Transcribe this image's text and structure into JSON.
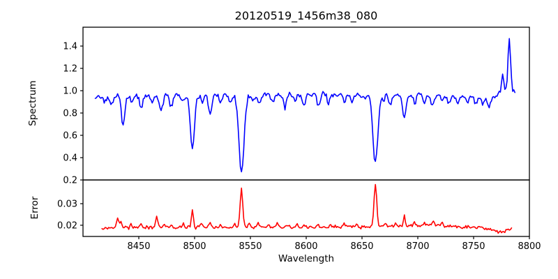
{
  "figure": {
    "title": "20120519_1456m38_080",
    "background": "#ffffff",
    "frame_color": "#000000",
    "text_color": "#000000"
  },
  "chart_data": [
    {
      "id": "spectrum",
      "type": "line",
      "ylabel": "Spectrum",
      "color": "#0000ff",
      "grid": false,
      "legend": "none",
      "xlim": [
        8400,
        8800
      ],
      "ylim": [
        0.2,
        1.569
      ],
      "yticks": [
        {
          "v": 0.2,
          "label": "0.2"
        },
        {
          "v": 0.4,
          "label": "0.4"
        },
        {
          "v": 0.6,
          "label": "0.6"
        },
        {
          "v": 0.8,
          "label": "0.8"
        },
        {
          "v": 1.0,
          "label": "1.0"
        },
        {
          "v": 1.2,
          "label": "1.2"
        },
        {
          "v": 1.4,
          "label": "1.4"
        }
      ],
      "xticks": [
        {
          "v": 8450,
          "label": "8450"
        },
        {
          "v": 8500,
          "label": "8500"
        },
        {
          "v": 8550,
          "label": "8550"
        },
        {
          "v": 8600,
          "label": "8600"
        },
        {
          "v": 8650,
          "label": "8650"
        },
        {
          "v": 8700,
          "label": "8700"
        },
        {
          "v": 8750,
          "label": "8750"
        },
        {
          "v": 8800,
          "label": "8800"
        }
      ],
      "show_xtick_marks": false,
      "show_xtick_labels": false,
      "x_start": 8411,
      "x_end": 8787,
      "x_step": 1,
      "continuum": [
        [
          8411,
          0.94
        ],
        [
          8425,
          0.955
        ],
        [
          8460,
          0.96
        ],
        [
          8530,
          0.96
        ],
        [
          8600,
          0.965
        ],
        [
          8660,
          0.962
        ],
        [
          8700,
          0.96
        ],
        [
          8740,
          0.955
        ],
        [
          8757,
          0.945
        ],
        [
          8762,
          0.93
        ],
        [
          8768,
          0.955
        ],
        [
          8773,
          0.98
        ],
        [
          8779,
          1.0
        ],
        [
          8787,
          1.0
        ]
      ],
      "noise": {
        "amplitude": 0.05,
        "seed": 20120519
      },
      "features": [
        [
          8420,
          -0.05,
          1.2
        ],
        [
          8426,
          -0.08,
          1.5
        ],
        [
          8436,
          -0.27,
          1.5
        ],
        [
          8444,
          -0.06,
          1.2
        ],
        [
          8452,
          -0.12,
          1.4
        ],
        [
          8462,
          -0.07,
          1.3
        ],
        [
          8470,
          -0.15,
          1.5
        ],
        [
          8479,
          -0.1,
          1.4
        ],
        [
          8490,
          -0.06,
          1.2
        ],
        [
          8498,
          -0.49,
          1.8
        ],
        [
          8507,
          -0.07,
          1.2
        ],
        [
          8514,
          -0.17,
          1.5
        ],
        [
          8523,
          -0.07,
          1.2
        ],
        [
          8532,
          -0.07,
          1.2
        ],
        [
          8542,
          -0.7,
          2.3
        ],
        [
          8552,
          -0.05,
          1.2
        ],
        [
          8558,
          -0.08,
          1.3
        ],
        [
          8570,
          -0.06,
          1.2
        ],
        [
          8581,
          -0.11,
          1.1
        ],
        [
          8590,
          -0.05,
          1.2
        ],
        [
          8598,
          -0.1,
          1.3
        ],
        [
          8611,
          -0.1,
          1.3
        ],
        [
          8620,
          -0.08,
          1.2
        ],
        [
          8634,
          -0.07,
          1.2
        ],
        [
          8641,
          -0.06,
          1.2
        ],
        [
          8652,
          -0.05,
          1.2
        ],
        [
          8662,
          -0.61,
          2.2
        ],
        [
          8669,
          -0.06,
          1.2
        ],
        [
          8675,
          -0.1,
          1.2
        ],
        [
          8688,
          -0.21,
          1.5
        ],
        [
          8697,
          -0.07,
          1.2
        ],
        [
          8706,
          -0.06,
          1.2
        ],
        [
          8713,
          -0.09,
          1.3
        ],
        [
          8722,
          -0.06,
          1.2
        ],
        [
          8728,
          -0.07,
          1.2
        ],
        [
          8736,
          -0.08,
          1.3
        ],
        [
          8744,
          -0.06,
          1.2
        ],
        [
          8752,
          -0.07,
          1.2
        ],
        [
          8758,
          -0.06,
          1.2
        ],
        [
          8764,
          -0.08,
          1.5
        ],
        [
          8776,
          0.17,
          0.9
        ],
        [
          8782,
          0.48,
          1.1
        ]
      ]
    },
    {
      "id": "error",
      "type": "line",
      "ylabel": "Error",
      "xlabel": "Wavelength",
      "color": "#ff0000",
      "grid": false,
      "legend": "none",
      "xlim": [
        8400,
        8800
      ],
      "ylim": [
        0.0148,
        0.041
      ],
      "yticks": [
        {
          "v": 0.02,
          "label": "0.02"
        },
        {
          "v": 0.03,
          "label": "0.03"
        }
      ],
      "xticks": [
        {
          "v": 8450,
          "label": "8450"
        },
        {
          "v": 8500,
          "label": "8500"
        },
        {
          "v": 8550,
          "label": "8550"
        },
        {
          "v": 8600,
          "label": "8600"
        },
        {
          "v": 8650,
          "label": "8650"
        },
        {
          "v": 8700,
          "label": "8700"
        },
        {
          "v": 8750,
          "label": "8750"
        },
        {
          "v": 8800,
          "label": "8800"
        }
      ],
      "show_xtick_marks": true,
      "show_xtick_labels": true,
      "x_start": 8417,
      "x_end": 8784,
      "x_step": 1,
      "continuum": [
        [
          8417,
          0.0185
        ],
        [
          8440,
          0.019
        ],
        [
          8520,
          0.019
        ],
        [
          8600,
          0.019
        ],
        [
          8650,
          0.0193
        ],
        [
          8685,
          0.0195
        ],
        [
          8705,
          0.0198
        ],
        [
          8716,
          0.0203
        ],
        [
          8724,
          0.0196
        ],
        [
          8735,
          0.0192
        ],
        [
          8748,
          0.019
        ],
        [
          8758,
          0.0188
        ],
        [
          8766,
          0.0182
        ],
        [
          8771,
          0.0168
        ],
        [
          8776,
          0.0172
        ],
        [
          8780,
          0.0179
        ],
        [
          8784,
          0.018
        ]
      ],
      "noise": {
        "amplitude": 0.0016,
        "seed": 1456
      },
      "features": [
        [
          8431,
          0.005,
          0.9
        ],
        [
          8434,
          0.003,
          0.9
        ],
        [
          8443,
          0.0018,
          0.8
        ],
        [
          8452,
          0.0014,
          0.8
        ],
        [
          8466,
          0.0048,
          0.9
        ],
        [
          8473,
          0.0012,
          0.8
        ],
        [
          8479,
          0.0014,
          0.8
        ],
        [
          8490,
          0.0012,
          0.8
        ],
        [
          8498,
          0.0085,
          0.9
        ],
        [
          8506,
          0.0018,
          0.9
        ],
        [
          8514,
          0.002,
          0.9
        ],
        [
          8523,
          0.0012,
          0.8
        ],
        [
          8536,
          0.0014,
          0.8
        ],
        [
          8542,
          0.018,
          1.2
        ],
        [
          8549,
          0.0015,
          0.8
        ],
        [
          8557,
          0.0022,
          0.9
        ],
        [
          8566,
          0.0012,
          0.8
        ],
        [
          8574,
          0.002,
          0.9
        ],
        [
          8584,
          0.0012,
          0.8
        ],
        [
          8592,
          0.0014,
          0.8
        ],
        [
          8598,
          0.0014,
          0.8
        ],
        [
          8611,
          0.0016,
          0.8
        ],
        [
          8622,
          0.0012,
          0.8
        ],
        [
          8634,
          0.0014,
          0.8
        ],
        [
          8645,
          0.0012,
          0.8
        ],
        [
          8662,
          0.0198,
          1.2
        ],
        [
          8671,
          0.0018,
          0.8
        ],
        [
          8680,
          0.0014,
          0.8
        ],
        [
          8688,
          0.0048,
          0.9
        ],
        [
          8697,
          0.0017,
          0.8
        ],
        [
          8706,
          0.0014,
          0.8
        ],
        [
          8714,
          0.0018,
          0.9
        ],
        [
          8722,
          0.0016,
          0.9
        ]
      ]
    }
  ]
}
